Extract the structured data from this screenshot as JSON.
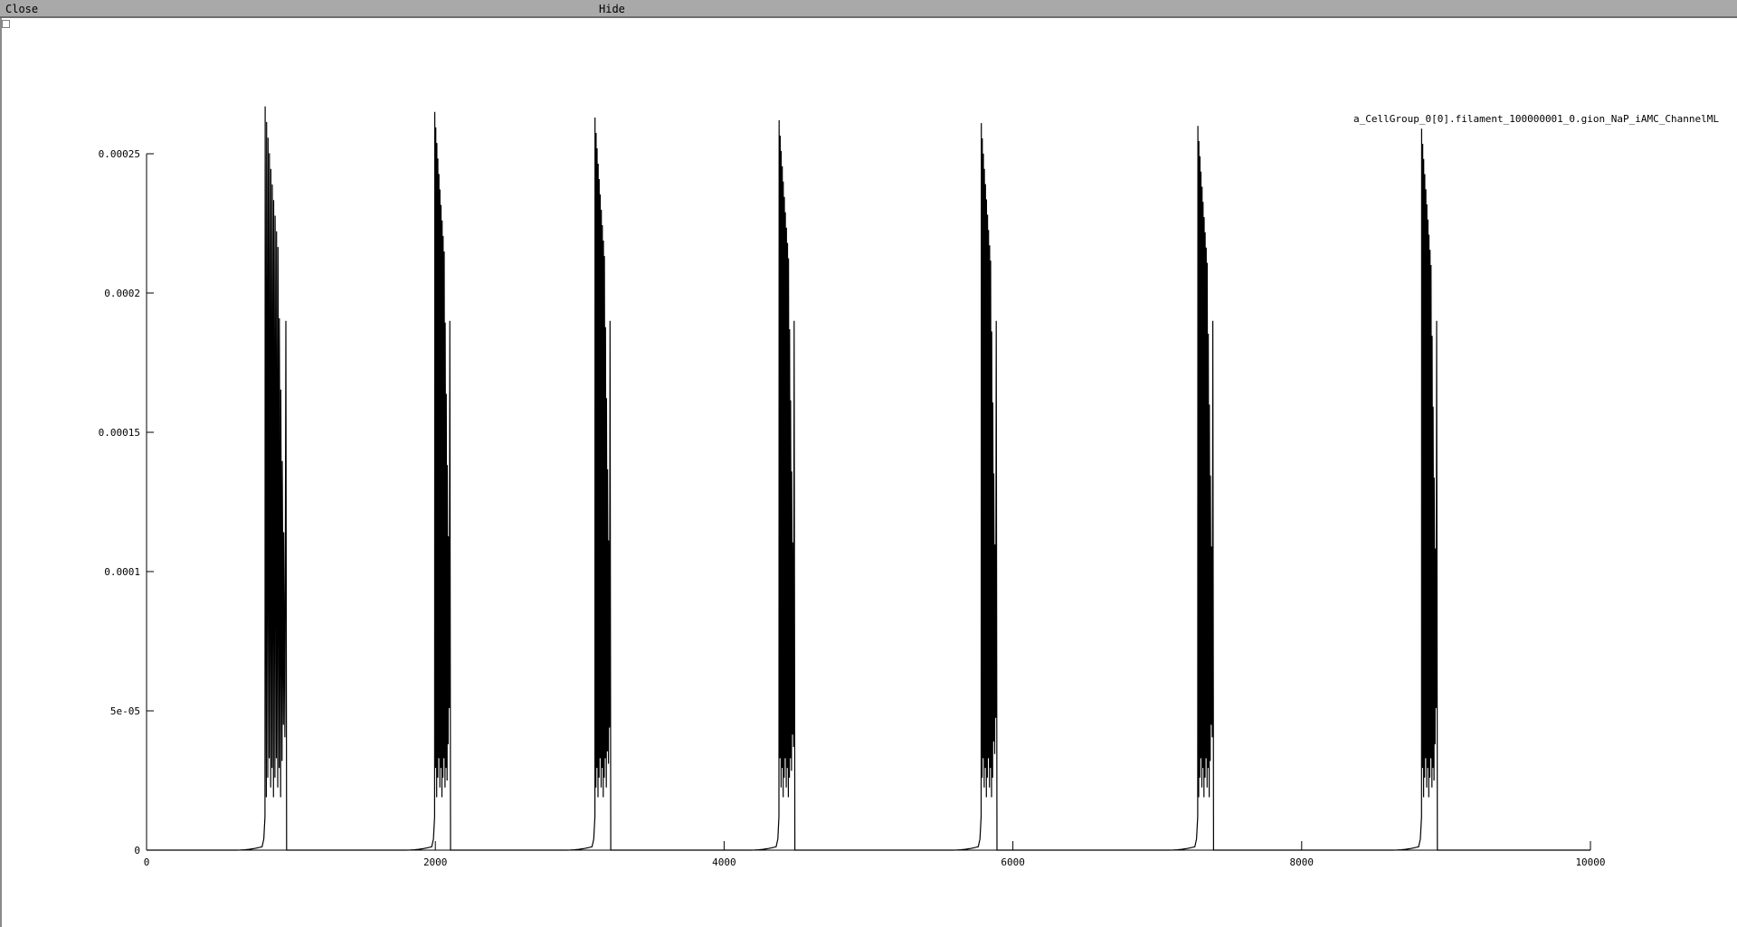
{
  "menu": {
    "close_label": "Close",
    "hide_label": "Hide"
  },
  "chart_data": {
    "type": "line",
    "series": [
      {
        "name": "a_CellGroup_0[0].filament_100000001_0.gion_NaP_iAMC_ChannelML"
      }
    ],
    "xlim": [
      0,
      10000
    ],
    "ylim": [
      0,
      0.00025
    ],
    "x_ticks": [
      0,
      2000,
      4000,
      6000,
      8000,
      10000
    ],
    "x_tick_labels": [
      "0",
      "2000",
      "4000",
      "6000",
      "8000",
      "10000"
    ],
    "y_ticks": [
      0,
      5e-05,
      0.0001,
      0.00015,
      0.0002,
      0.00025
    ],
    "y_tick_labels": [
      "0",
      "5e-05",
      "0.0001",
      "0.00015",
      "0.0002",
      "0.00025"
    ],
    "bursts": [
      {
        "start": 820,
        "end": 970,
        "peak": 0.000267
      },
      {
        "start": 1995,
        "end": 2105,
        "peak": 0.000265
      },
      {
        "start": 3105,
        "end": 3215,
        "peak": 0.000263
      },
      {
        "start": 4380,
        "end": 4490,
        "peak": 0.000262
      },
      {
        "start": 5780,
        "end": 5890,
        "peak": 0.000261
      },
      {
        "start": 7280,
        "end": 7390,
        "peak": 0.00026
      },
      {
        "start": 8830,
        "end": 8940,
        "peak": 0.000259
      }
    ],
    "grid": false,
    "legend_position": "top-right",
    "color": "#000000"
  }
}
